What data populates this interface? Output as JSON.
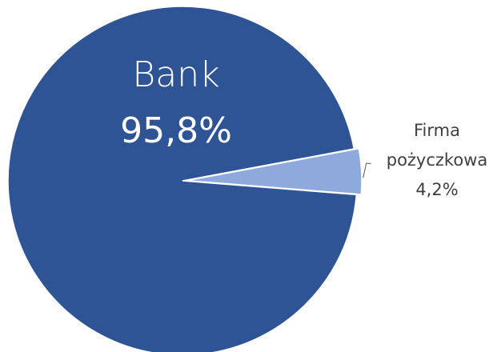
{
  "chart_data": {
    "type": "pie",
    "slices": [
      {
        "label": "Bank",
        "value_label": "95,8%",
        "value": 95.8,
        "color": "#2F5496"
      },
      {
        "label": "Firma pożyczkowa",
        "label_lines": [
          "Firma",
          "pożyczkowa"
        ],
        "value_label": "4,2%",
        "value": 4.2,
        "color": "#8EA9DB"
      }
    ],
    "slice_border": "#ffffff",
    "inside_label_color": "#ffffff",
    "outside_label_color": "#404040",
    "leader_line_color": "#595959"
  }
}
